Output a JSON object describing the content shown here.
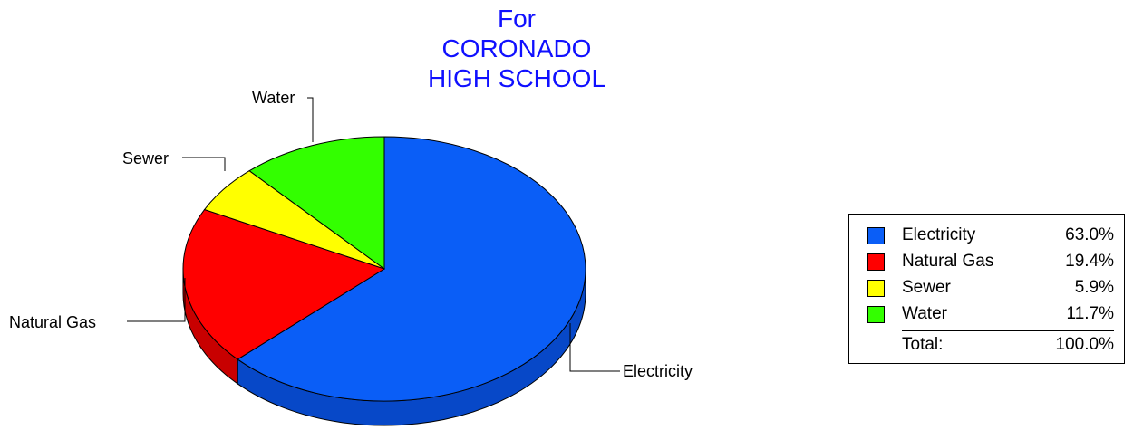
{
  "chart_data": {
    "type": "pie",
    "title_lines": [
      "For",
      "CORONADO",
      "HIGH SCHOOL"
    ],
    "slices": [
      {
        "label": "Electricity",
        "value": 63.0,
        "display": "63.0%",
        "color": "#0a5ef7",
        "side_color": "#0748c8"
      },
      {
        "label": "Natural Gas",
        "value": 19.4,
        "display": "19.4%",
        "color": "#ff0000",
        "side_color": "#c80000"
      },
      {
        "label": "Sewer",
        "value": 5.9,
        "display": "5.9%",
        "color": "#ffff00",
        "side_color": "#cccc00"
      },
      {
        "label": "Water",
        "value": 11.7,
        "display": "11.7%",
        "color": "#33ff00",
        "side_color": "#22cc00"
      }
    ],
    "total": {
      "label": "Total:",
      "display": "100.0%"
    },
    "legend_position": "right"
  }
}
